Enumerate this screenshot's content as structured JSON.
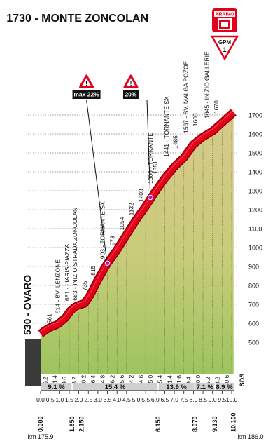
{
  "chart_data": {
    "type": "area",
    "title": "1730 - MONTE ZONCOLAN",
    "finish_badge": "ARRIVO",
    "gpm_label": "GPM",
    "gpm_category": "1",
    "start_label": "530 - OVARO",
    "start_bar_label": "0.000",
    "sds_mark": "SDS",
    "ylim": [
      450,
      1700
    ],
    "yticks": [
      "500",
      "600",
      "700",
      "800",
      "900",
      "1000",
      "1100",
      "1200",
      "1300",
      "1400",
      "1500",
      "1600",
      "1700"
    ],
    "xlim": [
      0,
      10.1
    ],
    "xticks": [
      "0.0",
      "0.5",
      "1.0",
      "1.5",
      "2.0",
      "2.5",
      "3.0",
      "3.5",
      "4.0",
      "4.5",
      "5.0",
      "5.5",
      "6.0",
      "6.5",
      "7.0",
      "7.5",
      "8.0",
      "8.5",
      "9.0",
      "9.5",
      "10.0"
    ],
    "xlabels": [
      {
        "x": 0.0,
        "text": "0.000"
      },
      {
        "x": 1.65,
        "text": "1.650"
      },
      {
        "x": 2.15,
        "text": "2.150"
      },
      {
        "x": 6.15,
        "text": "6.150"
      },
      {
        "x": 8.07,
        "text": "8.070"
      },
      {
        "x": 9.13,
        "text": "9.130"
      },
      {
        "x": 10.1,
        "text": "10.100"
      }
    ],
    "km_start": "km 175.9",
    "km_end": "km 186.0",
    "profile": [
      {
        "x": 0.0,
        "y": 530
      },
      {
        "x": 0.2,
        "y": 545
      },
      {
        "x": 0.45,
        "y": 561
      },
      {
        "x": 0.9,
        "y": 580
      },
      {
        "x": 1.3,
        "y": 614
      },
      {
        "x": 1.55,
        "y": 650
      },
      {
        "x": 1.8,
        "y": 672
      },
      {
        "x": 2.0,
        "y": 681
      },
      {
        "x": 2.3,
        "y": 690
      },
      {
        "x": 2.6,
        "y": 735
      },
      {
        "x": 3.0,
        "y": 815
      },
      {
        "x": 3.5,
        "y": 903
      },
      {
        "x": 4.0,
        "y": 973
      },
      {
        "x": 4.5,
        "y": 1054
      },
      {
        "x": 5.0,
        "y": 1132
      },
      {
        "x": 5.5,
        "y": 1203
      },
      {
        "x": 6.0,
        "y": 1280
      },
      {
        "x": 6.5,
        "y": 1351
      },
      {
        "x": 7.0,
        "y": 1412
      },
      {
        "x": 7.5,
        "y": 1460
      },
      {
        "x": 8.0,
        "y": 1530
      },
      {
        "x": 8.5,
        "y": 1570
      },
      {
        "x": 9.0,
        "y": 1600
      },
      {
        "x": 9.5,
        "y": 1645
      },
      {
        "x": 10.1,
        "y": 1700
      }
    ],
    "elevation_labels": [
      {
        "x": 0.45,
        "y": 561,
        "text": "561"
      },
      {
        "x": 0.9,
        "y": 614,
        "text": "614 - BV. LENZONE"
      },
      {
        "x": 1.4,
        "y": 681,
        "text": "681 - LIARIS-PIAZZA"
      },
      {
        "x": 1.8,
        "y": 683,
        "text": "683 - INIZIO STRADA ZONCOLAN"
      },
      {
        "x": 2.3,
        "y": 735,
        "text": "735"
      },
      {
        "x": 2.75,
        "y": 815,
        "text": "815"
      },
      {
        "x": 3.25,
        "y": 903,
        "text": "903 - TORNANTE SX"
      },
      {
        "x": 3.75,
        "y": 973,
        "text": "973"
      },
      {
        "x": 4.25,
        "y": 1054,
        "text": "1054"
      },
      {
        "x": 4.75,
        "y": 1132,
        "text": "1132"
      },
      {
        "x": 5.25,
        "y": 1203,
        "text": "1203"
      },
      {
        "x": 5.75,
        "y": 1300,
        "text": "1300 - TORNANTE"
      },
      {
        "x": 6.0,
        "y": 1351,
        "text": "1351"
      },
      {
        "x": 6.6,
        "y": 1441,
        "text": "1441 - TORNANTE SX"
      },
      {
        "x": 7.05,
        "y": 1485,
        "text": "1485"
      },
      {
        "x": 7.6,
        "y": 1567,
        "text": "1567 - BV. MALGA POZOF"
      },
      {
        "x": 8.1,
        "y": 1603,
        "text": "1603"
      },
      {
        "x": 8.7,
        "y": 1645,
        "text": "1645 - INIZIO GALLERIE"
      },
      {
        "x": 9.2,
        "y": 1670,
        "text": "1670"
      }
    ],
    "segment_gradients": [
      "6.2",
      "11.4",
      "9.6",
      "3.2",
      "10.2",
      "16.4",
      "14.8",
      "16.2",
      "15.6",
      "14.2",
      "14.6",
      "15.0",
      "15.4",
      "11.4",
      "11.6",
      "9.4",
      "10.0",
      "5.2",
      "8.2",
      "10.6"
    ],
    "summary_gradients": [
      {
        "x0": 0.0,
        "x1": 1.65,
        "text": "9.1 %"
      },
      {
        "x0": 1.65,
        "x1": 6.15,
        "text": "15.4 %"
      },
      {
        "x0": 6.15,
        "x1": 8.07,
        "text": "13.9 %"
      },
      {
        "x0": 8.07,
        "x1": 9.13,
        "text": "7.1 %"
      },
      {
        "x0": 9.13,
        "x1": 10.1,
        "text": "8.9 %"
      }
    ],
    "callouts": [
      {
        "x": 3.5,
        "y": 903,
        "text": "max 22%"
      },
      {
        "x": 5.75,
        "y": 1250,
        "text": "20%"
      }
    ],
    "colors": {
      "road": "#e3001b",
      "hill_top": "#d4c586",
      "hill_bottom": "#9dc45e",
      "grid": "#7a7a7a",
      "warning": "#e3001b",
      "marker": "#cc00cc"
    }
  }
}
